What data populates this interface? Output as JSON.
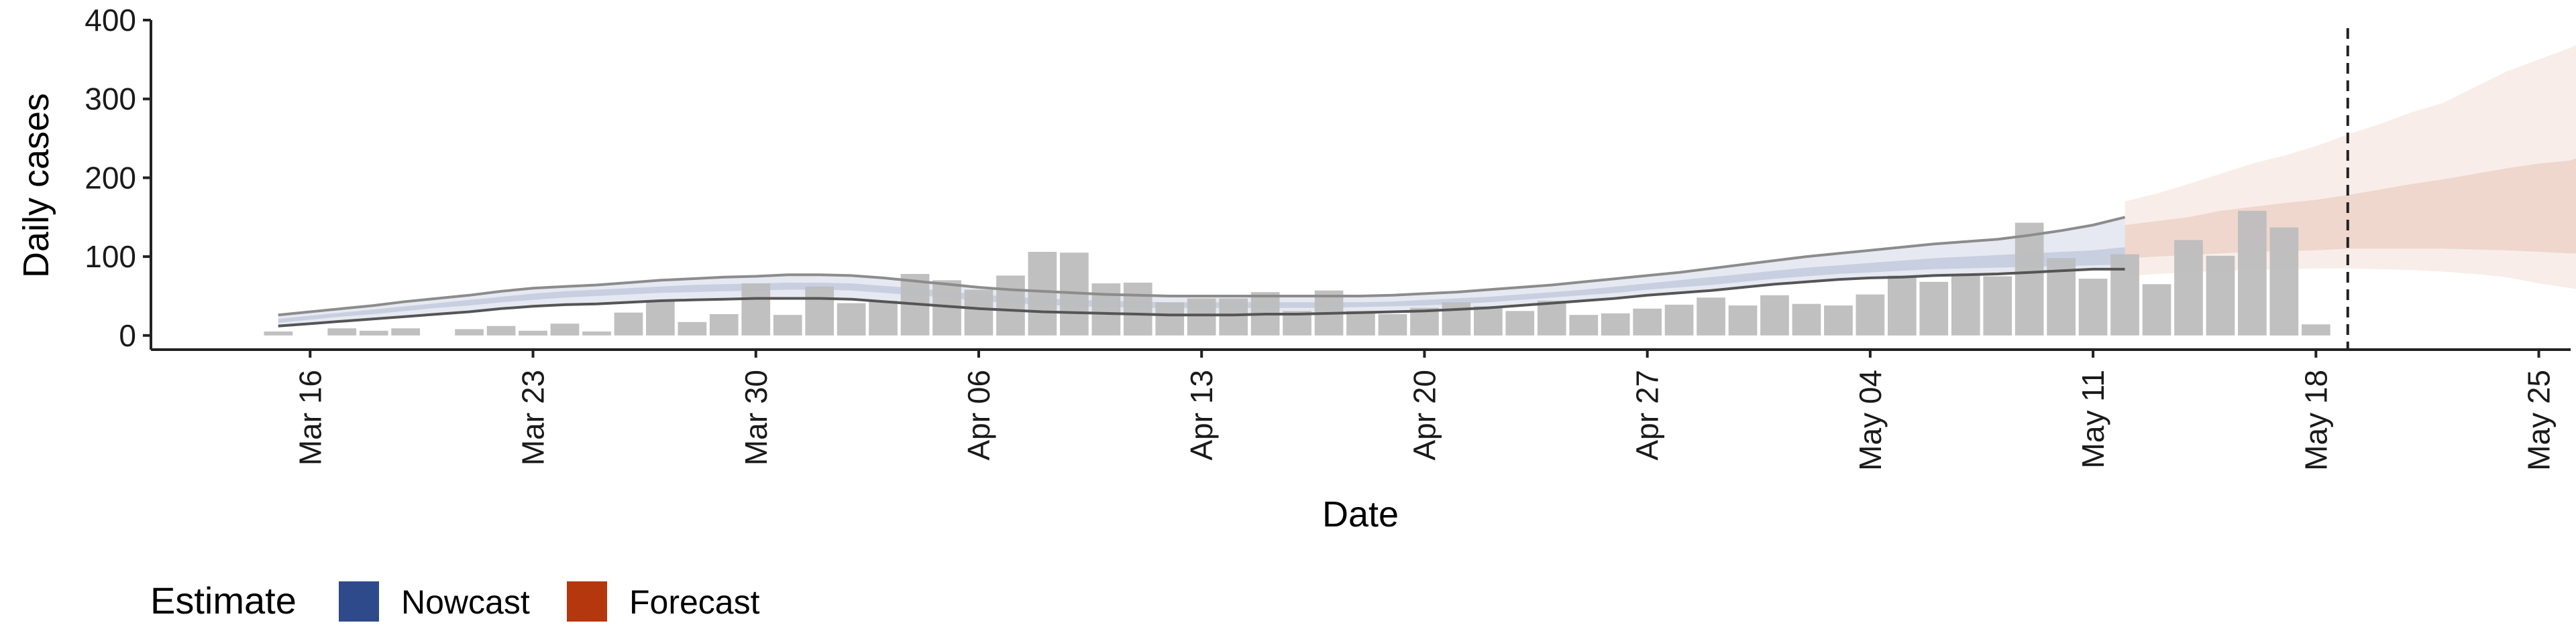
{
  "chart_data": {
    "type": "bar",
    "title": "",
    "xlabel": "Date",
    "ylabel": "Daily cases",
    "ylim": [
      -18,
      400
    ],
    "yticks": [
      0,
      100,
      200,
      300,
      400
    ],
    "xlim": [
      "2020-03-11",
      "2020-05-26"
    ],
    "xticks": [
      {
        "date": "2020-03-16",
        "label": "Mar 16"
      },
      {
        "date": "2020-03-23",
        "label": "Mar 23"
      },
      {
        "date": "2020-03-30",
        "label": "Mar 30"
      },
      {
        "date": "2020-04-06",
        "label": "Apr 06"
      },
      {
        "date": "2020-04-13",
        "label": "Apr 13"
      },
      {
        "date": "2020-04-20",
        "label": "Apr 20"
      },
      {
        "date": "2020-04-27",
        "label": "Apr 27"
      },
      {
        "date": "2020-05-04",
        "label": "May 04"
      },
      {
        "date": "2020-05-11",
        "label": "May 11"
      },
      {
        "date": "2020-05-18",
        "label": "May 18"
      },
      {
        "date": "2020-05-25",
        "label": "May 25"
      }
    ],
    "grid": false,
    "bar_color": "#bdbdbd",
    "reported_cases": {
      "start_date": "2020-03-15",
      "values": [
        5,
        0,
        9,
        6,
        9,
        0,
        8,
        12,
        6,
        15,
        5,
        29,
        43,
        17,
        27,
        66,
        26,
        62,
        41,
        44,
        78,
        70,
        58,
        76,
        106,
        105,
        66,
        67,
        42,
        47,
        47,
        55,
        31,
        57,
        31,
        27,
        35,
        42,
        37,
        31,
        44,
        26,
        28,
        34,
        39,
        48,
        38,
        51,
        40,
        38,
        52,
        76,
        68,
        77,
        75,
        143,
        98,
        72,
        103,
        65,
        121,
        101,
        158,
        137,
        14
      ]
    },
    "nowcast": {
      "start_date": "2020-03-15",
      "color": "#2e4a8a",
      "upper_90": [
        26,
        30,
        34,
        38,
        43,
        47,
        51,
        56,
        60,
        62,
        64,
        67,
        70,
        72,
        74,
        75,
        77,
        77,
        76,
        73,
        69,
        65,
        61,
        58,
        56,
        54,
        52,
        51,
        50,
        50,
        50,
        50,
        50,
        50,
        50,
        51,
        53,
        55,
        58,
        61,
        64,
        68,
        72,
        76,
        80,
        85,
        90,
        95,
        100,
        104,
        108,
        112,
        116,
        119,
        122,
        127,
        133,
        140,
        150
      ],
      "upper_50": [
        21,
        25,
        29,
        33,
        37,
        41,
        45,
        49,
        53,
        56,
        58,
        60,
        62,
        64,
        65,
        66,
        67,
        67,
        66,
        63,
        60,
        56,
        52,
        49,
        47,
        45,
        44,
        43,
        42,
        42,
        42,
        42,
        42,
        42,
        42,
        43,
        45,
        47,
        49,
        52,
        55,
        58,
        62,
        66,
        70,
        74,
        78,
        82,
        86,
        89,
        92,
        95,
        98,
        100,
        102,
        104,
        106,
        108,
        112
      ],
      "lower_50": [
        16,
        20,
        24,
        27,
        31,
        35,
        38,
        42,
        45,
        48,
        50,
        52,
        54,
        55,
        56,
        57,
        58,
        58,
        57,
        54,
        51,
        48,
        44,
        41,
        39,
        37,
        36,
        35,
        35,
        35,
        35,
        35,
        35,
        35,
        36,
        37,
        38,
        40,
        42,
        45,
        48,
        51,
        54,
        58,
        61,
        64,
        68,
        72,
        75,
        78,
        80,
        82,
        84,
        85,
        86,
        87,
        88,
        89,
        90
      ],
      "lower_90": [
        12,
        15,
        18,
        21,
        24,
        27,
        30,
        34,
        37,
        39,
        40,
        42,
        44,
        45,
        46,
        47,
        47,
        47,
        46,
        43,
        40,
        37,
        34,
        32,
        30,
        29,
        28,
        27,
        26,
        26,
        26,
        27,
        27,
        28,
        29,
        30,
        31,
        33,
        35,
        38,
        41,
        44,
        47,
        51,
        54,
        57,
        61,
        65,
        68,
        71,
        73,
        74,
        76,
        77,
        78,
        80,
        82,
        84,
        84
      ]
    },
    "forecast": {
      "start_date": "2020-05-12",
      "color": "#b5370d",
      "upper_90": [
        170,
        180,
        192,
        205,
        218,
        228,
        240,
        255,
        268,
        283,
        295,
        315,
        335,
        350,
        365,
        385
      ],
      "upper_50": [
        140,
        145,
        150,
        158,
        163,
        168,
        172,
        178,
        185,
        192,
        198,
        205,
        212,
        218,
        222,
        238
      ],
      "lower_50": [
        98,
        100,
        102,
        104,
        106,
        107,
        108,
        110,
        110,
        110,
        110,
        109,
        108,
        106,
        104,
        105
      ],
      "lower_90": [
        75,
        78,
        80,
        82,
        83,
        84,
        85,
        85,
        84,
        83,
        81,
        78,
        74,
        66,
        60,
        55
      ]
    },
    "vline_date": "2020-05-19",
    "legend": {
      "position": "bottom-left",
      "title": "Estimate",
      "items": [
        {
          "label": "Nowcast",
          "color": "#2e4a8a"
        },
        {
          "label": "Forecast",
          "color": "#b5370d"
        }
      ]
    }
  }
}
